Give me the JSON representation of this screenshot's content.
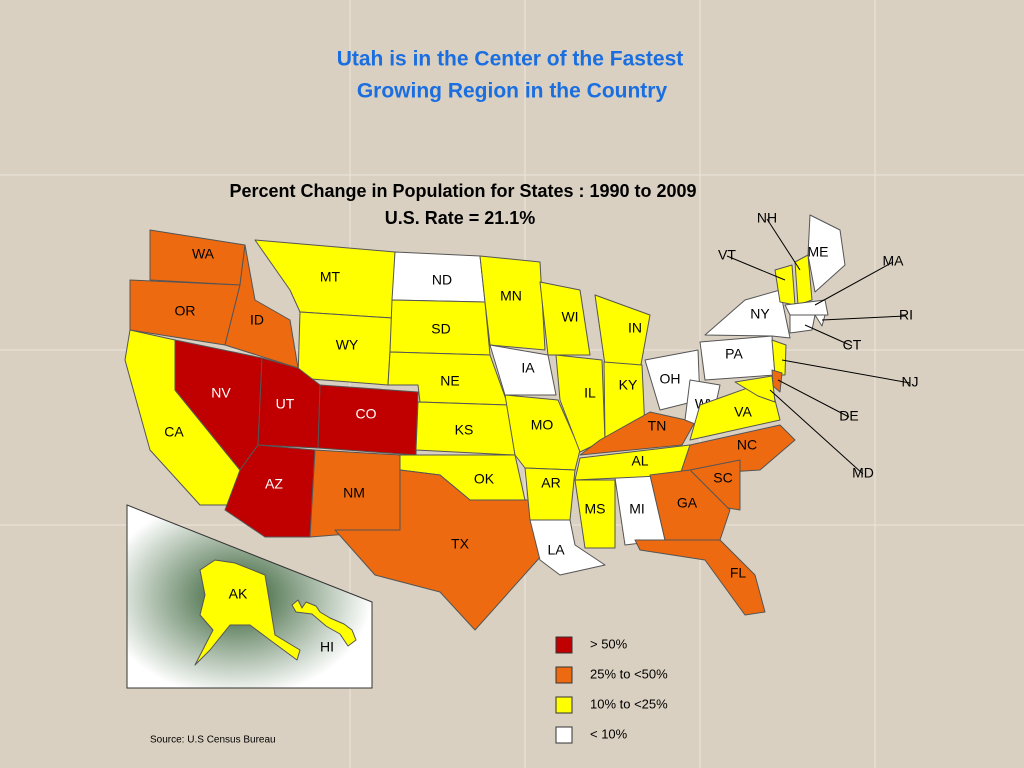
{
  "header": {
    "title_lines": [
      "Utah is in the Center of the Fastest",
      "Growing Region in the Country"
    ]
  },
  "map": {
    "title_lines": [
      "Percent Change in Population for States : 1990 to 2009",
      "U.S. Rate = 21.1%"
    ],
    "states": [
      {
        "label": "WA",
        "color": "#ee6a10"
      },
      {
        "label": "OR",
        "color": "#ee6a10"
      },
      {
        "label": "CA",
        "color": "#ffff00"
      },
      {
        "label": "ID",
        "color": "#ee6a10"
      },
      {
        "label": "NV",
        "color": "#c00000"
      },
      {
        "label": "MT",
        "color": "#ffff00"
      },
      {
        "label": "WY",
        "color": "#ffff00"
      },
      {
        "label": "UT",
        "color": "#c00000"
      },
      {
        "label": "AZ",
        "color": "#c00000"
      },
      {
        "label": "CO",
        "color": "#c00000"
      },
      {
        "label": "NM",
        "color": "#ee6a10"
      },
      {
        "label": "ND",
        "color": "#ffffff"
      },
      {
        "label": "SD",
        "color": "#ffff00"
      },
      {
        "label": "NE",
        "color": "#ffff00"
      },
      {
        "label": "KS",
        "color": "#ffff00"
      },
      {
        "label": "OK",
        "color": "#ffff00"
      },
      {
        "label": "TX",
        "color": "#ee6a10"
      },
      {
        "label": "MN",
        "color": "#ffff00"
      },
      {
        "label": "IA",
        "color": "#ffffff"
      },
      {
        "label": "MO",
        "color": "#ffff00"
      },
      {
        "label": "AR",
        "color": "#ffff00"
      },
      {
        "label": "LA",
        "color": "#ffffff"
      },
      {
        "label": "WI",
        "color": "#ffff00"
      },
      {
        "label": "IL",
        "color": "#ffff00"
      },
      {
        "label": "MS",
        "color": "#ffff00"
      },
      {
        "label": "MI",
        "color": "#ffffff"
      },
      {
        "label": "IN",
        "color": "#ffff00"
      },
      {
        "label": "KY",
        "color": "#ffff00"
      },
      {
        "label": "TN",
        "color": "#ee6a10"
      },
      {
        "label": "AL",
        "color": "#ffff00"
      },
      {
        "label": "OH",
        "color": "#ffffff"
      },
      {
        "label": "WV",
        "color": "#ffffff"
      },
      {
        "label": "VA",
        "color": "#ffff00"
      },
      {
        "label": "NC",
        "color": "#ee6a10"
      },
      {
        "label": "SC",
        "color": "#ee6a10"
      },
      {
        "label": "GA",
        "color": "#ee6a10"
      },
      {
        "label": "FL",
        "color": "#ee6a10"
      },
      {
        "label": "PA",
        "color": "#ffffff"
      },
      {
        "label": "NY",
        "color": "#ffffff"
      },
      {
        "label": "VT",
        "color": "#ffff00"
      },
      {
        "label": "NH",
        "color": "#ffff00"
      },
      {
        "label": "ME",
        "color": "#ffffff"
      },
      {
        "label": "MA",
        "color": "#ffffff"
      },
      {
        "label": "RI",
        "color": "#ffffff"
      },
      {
        "label": "CT",
        "color": "#ffffff"
      },
      {
        "label": "NJ",
        "color": "#ffff00"
      },
      {
        "label": "DE",
        "color": "#ee6a10"
      },
      {
        "label": "MD",
        "color": "#ffff00"
      },
      {
        "label": "AK",
        "color": "#ffff00"
      },
      {
        "label": "HI",
        "color": "#ffff00"
      }
    ],
    "legend": [
      {
        "label": "> 50%",
        "color": "#c00000"
      },
      {
        "label": "25% to <50%",
        "color": "#ee6a10"
      },
      {
        "label": "10% to <25%",
        "color": "#ffff00"
      },
      {
        "label": "< 10%",
        "color": "#ffffff"
      }
    ]
  },
  "footer": {
    "source": "Source: U.S Census Bureau"
  }
}
